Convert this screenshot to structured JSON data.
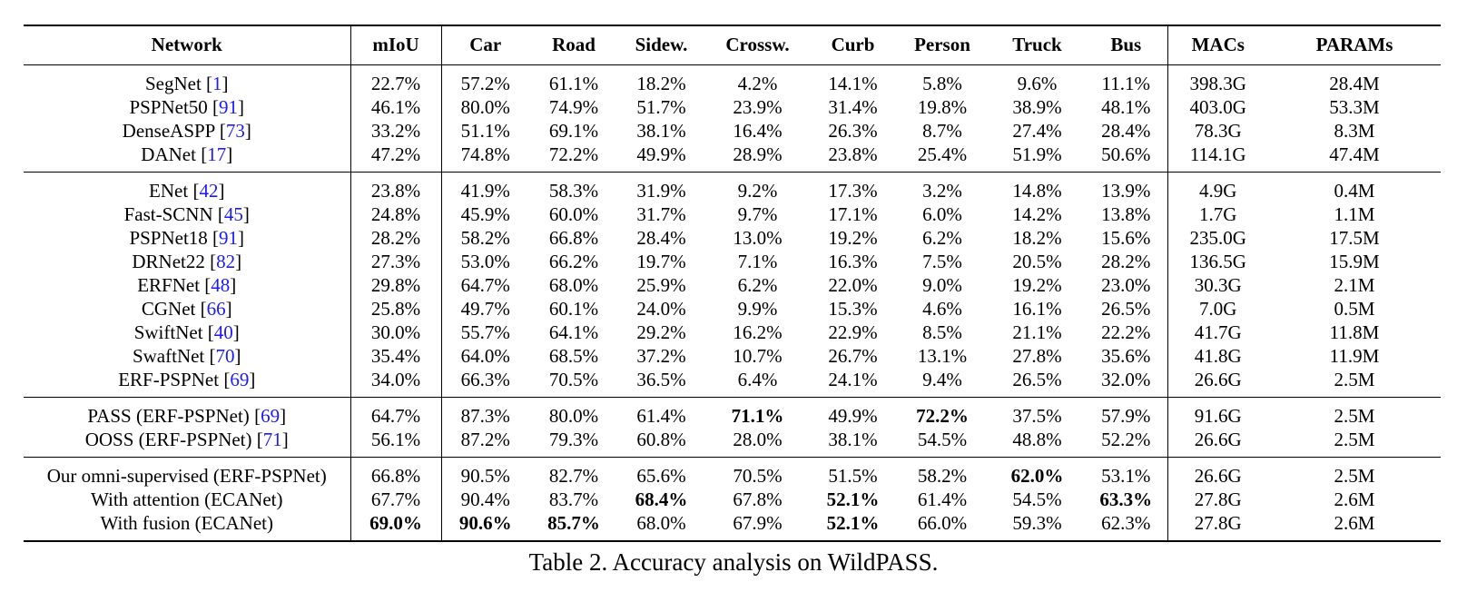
{
  "headers": [
    "Network",
    "mIoU",
    "Car",
    "Road",
    "Sidew.",
    "Crossw.",
    "Curb",
    "Person",
    "Truck",
    "Bus",
    "MACs",
    "PARAMs"
  ],
  "groups": [
    [
      {
        "name": "SegNet",
        "ref": "1",
        "cells": [
          "22.7%",
          "57.2%",
          "61.1%",
          "18.2%",
          "4.2%",
          "14.1%",
          "5.8%",
          "9.6%",
          "11.1%",
          "398.3G",
          "28.4M"
        ],
        "bold": []
      },
      {
        "name": "PSPNet50",
        "ref": "91",
        "cells": [
          "46.1%",
          "80.0%",
          "74.9%",
          "51.7%",
          "23.9%",
          "31.4%",
          "19.8%",
          "38.9%",
          "48.1%",
          "403.0G",
          "53.3M"
        ],
        "bold": []
      },
      {
        "name": "DenseASPP",
        "ref": "73",
        "cells": [
          "33.2%",
          "51.1%",
          "69.1%",
          "38.1%",
          "16.4%",
          "26.3%",
          "8.7%",
          "27.4%",
          "28.4%",
          "78.3G",
          "8.3M"
        ],
        "bold": []
      },
      {
        "name": "DANet",
        "ref": "17",
        "cells": [
          "47.2%",
          "74.8%",
          "72.2%",
          "49.9%",
          "28.9%",
          "23.8%",
          "25.4%",
          "51.9%",
          "50.6%",
          "114.1G",
          "47.4M"
        ],
        "bold": []
      }
    ],
    [
      {
        "name": "ENet",
        "ref": "42",
        "cells": [
          "23.8%",
          "41.9%",
          "58.3%",
          "31.9%",
          "9.2%",
          "17.3%",
          "3.2%",
          "14.8%",
          "13.9%",
          "4.9G",
          "0.4M"
        ],
        "bold": []
      },
      {
        "name": "Fast-SCNN",
        "ref": "45",
        "cells": [
          "24.8%",
          "45.9%",
          "60.0%",
          "31.7%",
          "9.7%",
          "17.1%",
          "6.0%",
          "14.2%",
          "13.8%",
          "1.7G",
          "1.1M"
        ],
        "bold": []
      },
      {
        "name": "PSPNet18",
        "ref": "91",
        "cells": [
          "28.2%",
          "58.2%",
          "66.8%",
          "28.4%",
          "13.0%",
          "19.2%",
          "6.2%",
          "18.2%",
          "15.6%",
          "235.0G",
          "17.5M"
        ],
        "bold": []
      },
      {
        "name": "DRNet22",
        "ref": "82",
        "cells": [
          "27.3%",
          "53.0%",
          "66.2%",
          "19.7%",
          "7.1%",
          "16.3%",
          "7.5%",
          "20.5%",
          "28.2%",
          "136.5G",
          "15.9M"
        ],
        "bold": []
      },
      {
        "name": "ERFNet",
        "ref": "48",
        "cells": [
          "29.8%",
          "64.7%",
          "68.0%",
          "25.9%",
          "6.2%",
          "22.0%",
          "9.0%",
          "19.2%",
          "23.0%",
          "30.3G",
          "2.1M"
        ],
        "bold": []
      },
      {
        "name": "CGNet",
        "ref": "66",
        "cells": [
          "25.8%",
          "49.7%",
          "60.1%",
          "24.0%",
          "9.9%",
          "15.3%",
          "4.6%",
          "16.1%",
          "26.5%",
          "7.0G",
          "0.5M"
        ],
        "bold": []
      },
      {
        "name": "SwiftNet",
        "ref": "40",
        "cells": [
          "30.0%",
          "55.7%",
          "64.1%",
          "29.2%",
          "16.2%",
          "22.9%",
          "8.5%",
          "21.1%",
          "22.2%",
          "41.7G",
          "11.8M"
        ],
        "bold": []
      },
      {
        "name": "SwaftNet",
        "ref": "70",
        "cells": [
          "35.4%",
          "64.0%",
          "68.5%",
          "37.2%",
          "10.7%",
          "26.7%",
          "13.1%",
          "27.8%",
          "35.6%",
          "41.8G",
          "11.9M"
        ],
        "bold": []
      },
      {
        "name": "ERF-PSPNet",
        "ref": "69",
        "cells": [
          "34.0%",
          "66.3%",
          "70.5%",
          "36.5%",
          "6.4%",
          "24.1%",
          "9.4%",
          "26.5%",
          "32.0%",
          "26.6G",
          "2.5M"
        ],
        "bold": []
      }
    ],
    [
      {
        "name": "PASS (ERF-PSPNet)",
        "ref": "69",
        "cells": [
          "64.7%",
          "87.3%",
          "80.0%",
          "61.4%",
          "71.1%",
          "49.9%",
          "72.2%",
          "37.5%",
          "57.9%",
          "91.6G",
          "2.5M"
        ],
        "bold": [
          4,
          6
        ]
      },
      {
        "name": "OOSS (ERF-PSPNet)",
        "ref": "71",
        "cells": [
          "56.1%",
          "87.2%",
          "79.3%",
          "60.8%",
          "28.0%",
          "38.1%",
          "54.5%",
          "48.8%",
          "52.2%",
          "26.6G",
          "2.5M"
        ],
        "bold": []
      }
    ],
    [
      {
        "name": "Our omni-supervised (ERF-PSPNet)",
        "ref": "",
        "cells": [
          "66.8%",
          "90.5%",
          "82.7%",
          "65.6%",
          "70.5%",
          "51.5%",
          "58.2%",
          "62.0%",
          "53.1%",
          "26.6G",
          "2.5M"
        ],
        "bold": [
          7
        ]
      },
      {
        "name": "With attention (ECANet)",
        "ref": "",
        "cells": [
          "67.7%",
          "90.4%",
          "83.7%",
          "68.4%",
          "67.8%",
          "52.1%",
          "61.4%",
          "54.5%",
          "63.3%",
          "27.8G",
          "2.6M"
        ],
        "bold": [
          3,
          5,
          8
        ]
      },
      {
        "name": "With fusion (ECANet)",
        "ref": "",
        "cells": [
          "69.0%",
          "90.6%",
          "85.7%",
          "68.0%",
          "67.9%",
          "52.1%",
          "66.0%",
          "59.3%",
          "62.3%",
          "27.8G",
          "2.6M"
        ],
        "bold": [
          0,
          1,
          2,
          5
        ]
      }
    ]
  ],
  "caption": "Table 2. Accuracy analysis on WildPASS."
}
